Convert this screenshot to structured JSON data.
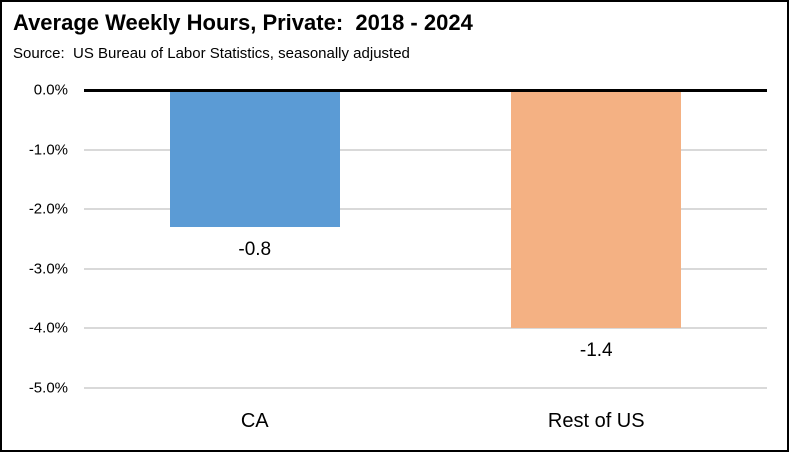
{
  "header": {
    "title": "Average Weekly Hours, Private:  2018 - 2024",
    "source": "Source:  US Bureau of Labor Statistics, seasonally adjusted"
  },
  "colors": {
    "background": "#FFFFFF",
    "border": "#000000",
    "gridline": "#D9D9D9",
    "zero_line": "#000000",
    "text": "#000000",
    "bar_ca": "#5B9BD5",
    "bar_rest_of_us": "#F4B183"
  },
  "chart_data": {
    "type": "bar",
    "title": "Average Weekly Hours, Private:  2018 - 2024",
    "subtitle": "Source:  US Bureau of Labor Statistics, seasonally adjusted",
    "categories": [
      "CA",
      "Rest of US"
    ],
    "values": [
      -2.3,
      -4.0
    ],
    "value_unit": "percent",
    "data_labels": [
      "-0.8",
      "-1.4"
    ],
    "series_colors": [
      "#5B9BD5",
      "#F4B183"
    ],
    "xlabel": "",
    "ylabel": "",
    "ytick_labels": [
      "0.0%",
      "-1.0%",
      "-2.0%",
      "-3.0%",
      "-4.0%",
      "-5.0%"
    ],
    "ytick_values": [
      0,
      -1,
      -2,
      -3,
      -4,
      -5
    ],
    "ylim": [
      -5.3,
      0
    ],
    "grid": true,
    "legend": false
  }
}
